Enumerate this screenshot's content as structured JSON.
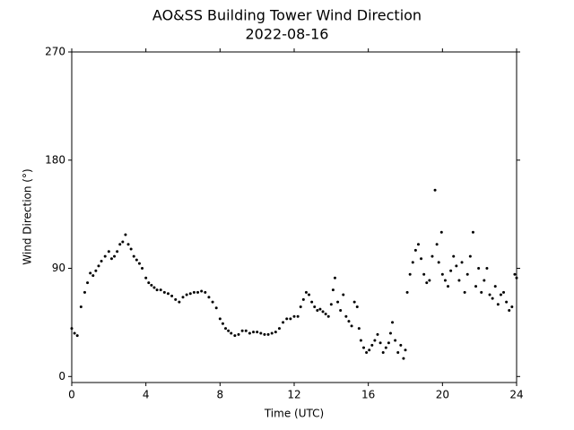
{
  "chart_data": {
    "type": "scatter",
    "title": "AO&SS Building Tower Wind Direction",
    "subtitle": "2022-08-16",
    "x_label": "Time (UTC)",
    "y_label": "Wind Direction (°)",
    "color": "#000000",
    "xlim": [
      0,
      24
    ],
    "xticks": [
      0,
      4,
      8,
      12,
      16,
      20,
      24
    ],
    "ylim": [
      -5,
      270
    ],
    "yticks": [
      0,
      90,
      180,
      270
    ],
    "x": [
      0,
      0.15,
      0.3,
      0.5,
      0.7,
      0.85,
      1.0,
      1.15,
      1.3,
      1.45,
      1.6,
      1.8,
      2.0,
      2.15,
      2.3,
      2.45,
      2.6,
      2.75,
      2.9,
      3.05,
      3.2,
      3.35,
      3.5,
      3.65,
      3.8,
      4.0,
      4.15,
      4.3,
      4.45,
      4.6,
      4.8,
      5.0,
      5.2,
      5.4,
      5.6,
      5.8,
      6.0,
      6.2,
      6.4,
      6.6,
      6.8,
      7.0,
      7.2,
      7.4,
      7.6,
      7.8,
      8.0,
      8.15,
      8.3,
      8.45,
      8.6,
      8.8,
      9.0,
      9.2,
      9.4,
      9.6,
      9.8,
      10.0,
      10.2,
      10.4,
      10.6,
      10.8,
      11.0,
      11.2,
      11.4,
      11.6,
      11.8,
      12.0,
      12.2,
      12.35,
      12.5,
      12.65,
      12.8,
      12.95,
      13.1,
      13.25,
      13.4,
      13.55,
      13.7,
      13.85,
      14.0,
      14.1,
      14.2,
      14.35,
      14.5,
      14.65,
      14.8,
      14.95,
      15.1,
      15.25,
      15.4,
      15.5,
      15.6,
      15.75,
      15.9,
      16.05,
      16.2,
      16.35,
      16.5,
      16.65,
      16.8,
      16.95,
      17.1,
      17.2,
      17.3,
      17.45,
      17.6,
      17.75,
      17.9,
      18.0,
      18.1,
      18.25,
      18.4,
      18.55,
      18.7,
      18.85,
      19.0,
      19.15,
      19.3,
      19.45,
      19.6,
      19.7,
      19.8,
      19.95,
      20.0,
      20.15,
      20.3,
      20.45,
      20.6,
      20.75,
      20.9,
      21.05,
      21.2,
      21.35,
      21.5,
      21.65,
      21.8,
      21.95,
      22.1,
      22.25,
      22.4,
      22.55,
      22.7,
      22.85,
      23.0,
      23.15,
      23.3,
      23.45,
      23.6,
      23.75,
      23.9,
      24.0
    ],
    "values": [
      40,
      36,
      34,
      58,
      70,
      78,
      86,
      84,
      88,
      92,
      96,
      100,
      104,
      98,
      100,
      104,
      110,
      112,
      118,
      110,
      106,
      100,
      97,
      94,
      90,
      82,
      78,
      76,
      74,
      72,
      72,
      70,
      69,
      67,
      64,
      62,
      66,
      68,
      69,
      70,
      70,
      71,
      70,
      66,
      62,
      57,
      48,
      44,
      40,
      38,
      36,
      34,
      35,
      38,
      38,
      36,
      37,
      37,
      36,
      35,
      35,
      36,
      37,
      40,
      45,
      48,
      48,
      50,
      50,
      58,
      64,
      70,
      68,
      62,
      58,
      55,
      56,
      54,
      52,
      50,
      60,
      72,
      82,
      62,
      55,
      68,
      50,
      46,
      42,
      62,
      58,
      40,
      30,
      24,
      20,
      22,
      26,
      30,
      35,
      28,
      20,
      24,
      28,
      36,
      45,
      30,
      20,
      26,
      15,
      22,
      70,
      85,
      95,
      105,
      110,
      98,
      85,
      78,
      80,
      100,
      155,
      110,
      95,
      120,
      85,
      80,
      75,
      88,
      100,
      92,
      80,
      95,
      70,
      85,
      100,
      120,
      75,
      90,
      70,
      80,
      90,
      68,
      65,
      75,
      60,
      68,
      70,
      62,
      55,
      58,
      85,
      82
    ]
  }
}
